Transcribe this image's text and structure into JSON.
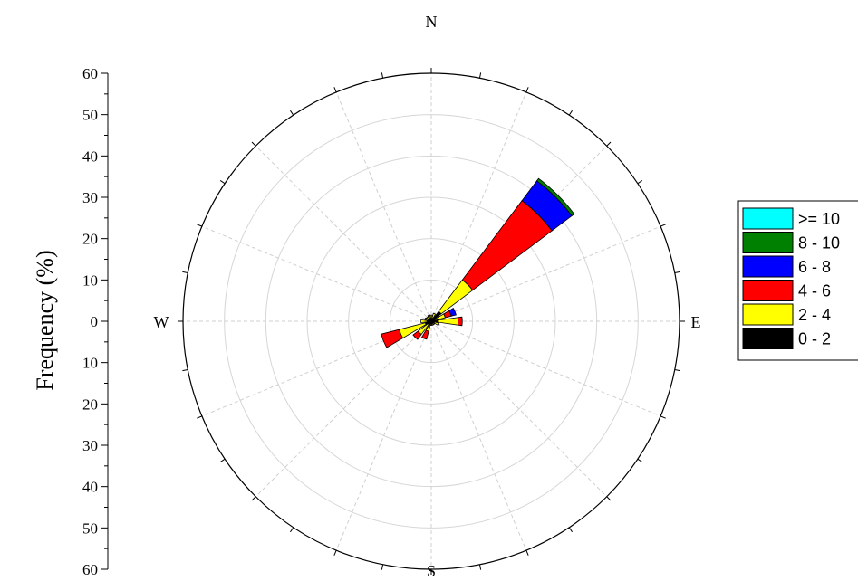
{
  "chart_data": {
    "type": "windrose",
    "ylabel": "Frequency (%)",
    "y_ticks": [
      "60",
      "50",
      "40",
      "30",
      "20",
      "10",
      "0",
      "10",
      "20",
      "30",
      "40",
      "50",
      "60"
    ],
    "radial_max": 60,
    "radial_step": 10,
    "directions": {
      "N": "N",
      "E": "E",
      "S": "S",
      "W": "W"
    },
    "sector_count": 16,
    "bins": [
      ">= 10",
      "8 - 10",
      "6 - 8",
      "4 - 6",
      "2 - 4",
      "0 - 2"
    ],
    "bin_colors": {
      ">= 10": "#00ffff",
      "8 - 10": "#008000",
      "6 - 8": "#0000ff",
      "4 - 6": "#ff0000",
      "2 - 4": "#ffff00",
      "0 - 2": "#000000"
    },
    "sectors": [
      {
        "direction": "N",
        "stack": {
          "0 - 2": 0.5,
          "2 - 4": 1.0
        }
      },
      {
        "direction": "NNE",
        "stack": {
          "0 - 2": 0.8,
          "2 - 4": 1.2
        }
      },
      {
        "direction": "NE",
        "stack": {
          "0 - 2": 3.0,
          "2 - 4": 9.5,
          "4 - 6": 24.0,
          "6 - 8": 6.0,
          "8 - 10": 0.7
        }
      },
      {
        "direction": "ENE",
        "stack": {
          "0 - 2": 1.0,
          "2 - 4": 2.5,
          "4 - 6": 1.5,
          "6 - 8": 1.2
        }
      },
      {
        "direction": "E",
        "stack": {
          "0 - 2": 1.5,
          "2 - 4": 5.0,
          "4 - 6": 1.0
        }
      },
      {
        "direction": "ESE",
        "stack": {
          "0 - 2": 0.8,
          "2 - 4": 1.0
        }
      },
      {
        "direction": "SE",
        "stack": {
          "0 - 2": 0.5,
          "2 - 4": 0.5
        }
      },
      {
        "direction": "SSE",
        "stack": {
          "0 - 2": 0.5,
          "2 - 4": 0.5
        }
      },
      {
        "direction": "S",
        "stack": {
          "0 - 2": 0.5,
          "2 - 4": 0.5
        }
      },
      {
        "direction": "SSW",
        "stack": {
          "0 - 2": 1.0,
          "2 - 4": 1.5,
          "4 - 6": 2.0
        }
      },
      {
        "direction": "SW",
        "stack": {
          "0 - 2": 1.0,
          "2 - 4": 3.0,
          "4 - 6": 1.5
        }
      },
      {
        "direction": "WSW",
        "stack": {
          "0 - 2": 1.5,
          "2 - 4": 6.5,
          "4 - 6": 4.5
        }
      },
      {
        "direction": "W",
        "stack": {
          "0 - 2": 1.0,
          "2 - 4": 1.5
        }
      },
      {
        "direction": "WNW",
        "stack": {
          "0 - 2": 0.8,
          "2 - 4": 0.8
        }
      },
      {
        "direction": "NW",
        "stack": {
          "0 - 2": 0.8,
          "2 - 4": 0.6
        }
      },
      {
        "direction": "NNW",
        "stack": {
          "0 - 2": 0.8,
          "2 - 4": 0.8
        }
      }
    ],
    "grid": true,
    "legend_position": "right"
  }
}
